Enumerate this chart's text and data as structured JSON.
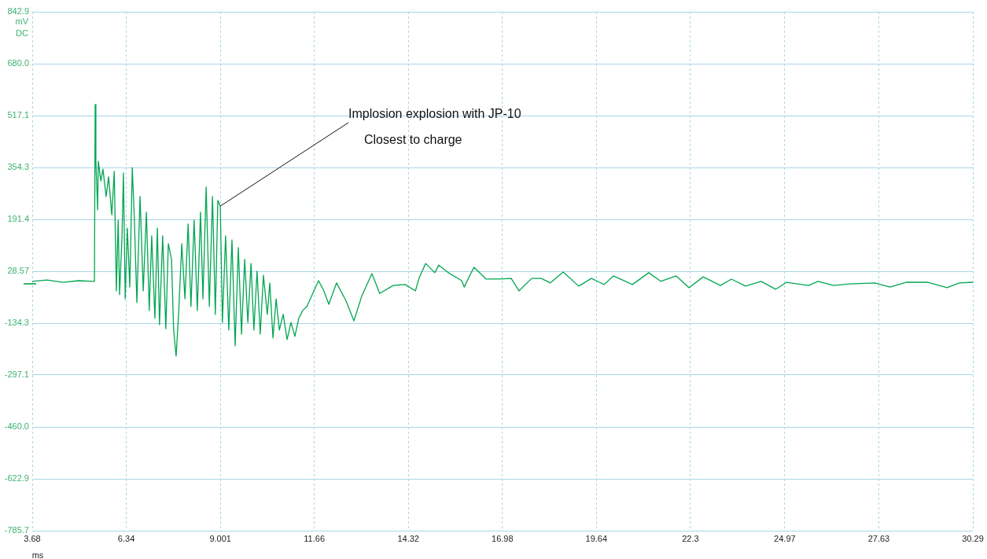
{
  "chart_data": {
    "type": "line",
    "xlabel": "ms",
    "ylabel": "mV DC",
    "annotations": [
      {
        "text": "Implosion explosion with JP-10",
        "x": 9.0,
        "y": 233
      },
      "Closest to charge"
    ],
    "xlim": [
      3.68,
      30.29
    ],
    "xticks": [
      3.68,
      6.34,
      9.001,
      11.66,
      14.32,
      16.98,
      19.64,
      22.3,
      24.97,
      27.63,
      30.29
    ],
    "ylim": [
      -785.7,
      842.9
    ],
    "yticks": [
      {
        "value": -785.7,
        "label": "-785.7"
      },
      {
        "value": -622.9,
        "label": "-622.9"
      },
      {
        "value": -460,
        "label": "-460.0"
      },
      {
        "value": -297.1,
        "label": "-297.1"
      },
      {
        "value": -134.3,
        "label": "-134.3"
      },
      {
        "value": 28.57,
        "label": "28.57"
      },
      {
        "value": 191.4,
        "label": "191.4"
      },
      {
        "value": 354.3,
        "label": "354.3"
      },
      {
        "value": 517.1,
        "label": "517.1"
      },
      {
        "value": 680,
        "label": "680.0"
      },
      {
        "value": 842.9,
        "label": "842.9"
      }
    ],
    "grid": true,
    "legend": false,
    "marker": "none",
    "line_style": "solid",
    "series": [
      {
        "color": "#00a651",
        "x": [
          3.68,
          4.1,
          4.55,
          4.99,
          5.39,
          5.44,
          5.46,
          5.48,
          5.53,
          5.55,
          5.62,
          5.68,
          5.77,
          5.84,
          5.93,
          6.0,
          6.06,
          6.11,
          6.15,
          6.22,
          6.26,
          6.31,
          6.37,
          6.44,
          6.51,
          6.57,
          6.64,
          6.73,
          6.82,
          6.91,
          6.99,
          7.06,
          7.15,
          7.22,
          7.28,
          7.37,
          7.46,
          7.53,
          7.62,
          7.68,
          7.75,
          7.82,
          7.91,
          8.0,
          8.09,
          8.17,
          8.26,
          8.35,
          8.44,
          8.51,
          8.6,
          8.69,
          8.78,
          8.86,
          8.93,
          9.0,
          9.06,
          9.15,
          9.24,
          9.33,
          9.42,
          9.51,
          9.6,
          9.69,
          9.78,
          9.87,
          9.95,
          10.04,
          10.13,
          10.22,
          10.33,
          10.4,
          10.49,
          10.58,
          10.67,
          10.78,
          10.89,
          11.0,
          11.11,
          11.22,
          11.33,
          11.45,
          11.6,
          11.78,
          11.93,
          12.07,
          12.29,
          12.56,
          12.78,
          13.0,
          13.29,
          13.51,
          13.89,
          14.23,
          14.52,
          14.63,
          14.81,
          15.07,
          15.18,
          15.45,
          15.83,
          15.9,
          16.12,
          16.18,
          16.52,
          16.9,
          17.23,
          17.45,
          17.81,
          18.08,
          18.34,
          18.7,
          19.14,
          19.5,
          19.86,
          20.12,
          20.66,
          21.12,
          21.46,
          21.9,
          22.26,
          22.66,
          23.15,
          23.46,
          23.86,
          24.3,
          24.71,
          25.02,
          25.64,
          25.91,
          26.35,
          26.8,
          27.51,
          27.95,
          28.4,
          29.02,
          29.56,
          29.91,
          30.29
        ],
        "values": [
          -3,
          1,
          -6,
          -1,
          -3,
          -3,
          552,
          374,
          221,
          374,
          312,
          349,
          263,
          325,
          206,
          342,
          -33,
          189,
          -45,
          140,
          337,
          -58,
          164,
          -21,
          354,
          189,
          -70,
          263,
          -33,
          214,
          -95,
          140,
          -119,
          164,
          -139,
          140,
          -152,
          115,
          66,
          -156,
          -238,
          -107,
          115,
          -58,
          177,
          -82,
          189,
          -95,
          214,
          -58,
          293,
          -82,
          263,
          -107,
          251,
          233,
          -132,
          140,
          -156,
          127,
          -206,
          103,
          -169,
          66,
          -132,
          53,
          -156,
          29,
          -169,
          16,
          -107,
          -8,
          -181,
          -58,
          -156,
          -107,
          -186,
          -132,
          -176,
          -119,
          -95,
          -82,
          -45,
          -1,
          -33,
          -75,
          -8,
          -65,
          -127,
          -50,
          21,
          -41,
          -16,
          -13,
          -33,
          9,
          53,
          24,
          48,
          24,
          -1,
          -21,
          29,
          41,
          4,
          4,
          6,
          -33,
          6,
          6,
          -8,
          26,
          -18,
          6,
          -13,
          14,
          -13,
          24,
          -3,
          14,
          -23,
          11,
          -16,
          4,
          -18,
          -3,
          -28,
          -6,
          -16,
          -3,
          -16,
          -11,
          -8,
          -21,
          -6,
          -6,
          -23,
          -8,
          -6
        ]
      }
    ]
  }
}
